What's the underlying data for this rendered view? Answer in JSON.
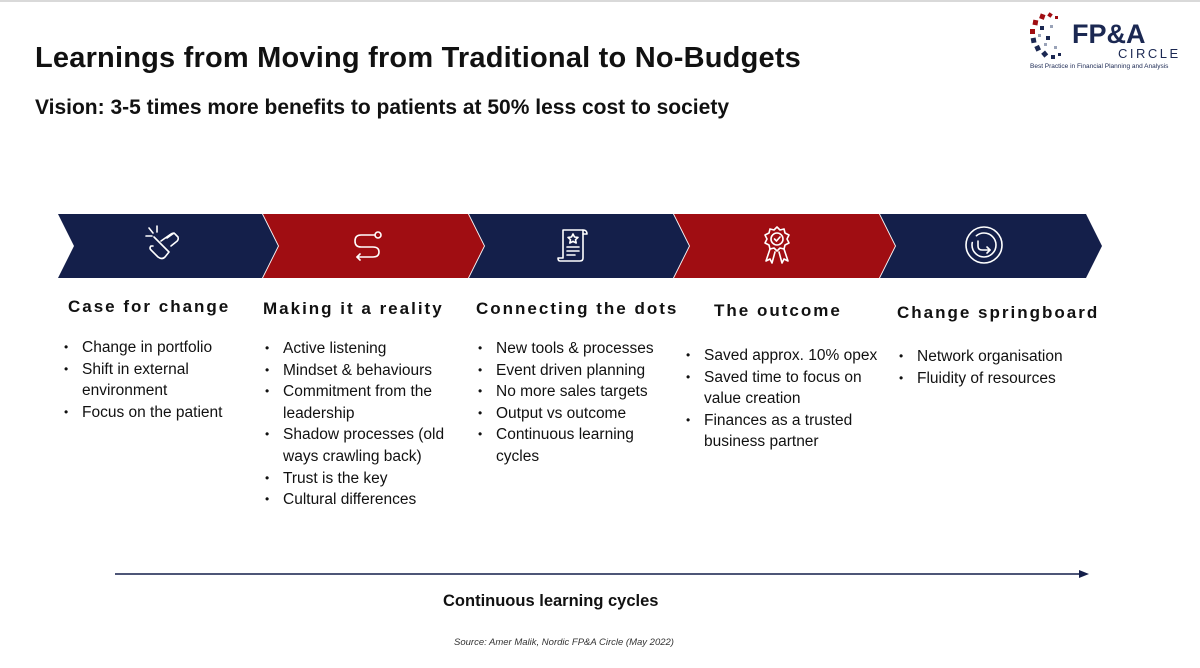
{
  "header": {
    "title": "Learnings from Moving from Traditional to No-Budgets",
    "subtitle": "Vision: 3-5 times more benefits to patients at 50% less cost to society"
  },
  "logo": {
    "brand_main": "FP&A",
    "brand_sub": "CIRCLE",
    "tagline": "Best Practice in Financial Planning and Analysis"
  },
  "colors": {
    "navy": "#141f4a",
    "red": "#a00d12"
  },
  "stages": [
    {
      "title": "Case for change",
      "icon": "pointing-hand-icon",
      "bullets": [
        "Change in portfolio",
        "Shift in external environment",
        "Focus on the patient"
      ]
    },
    {
      "title": "Making it a reality",
      "icon": "winding-path-icon",
      "bullets": [
        "Active listening",
        "Mindset & behaviours",
        "Commitment from the leadership",
        "Shadow processes (old ways crawling back)",
        "Trust is the key",
        "Cultural differences"
      ]
    },
    {
      "title": "Connecting the dots",
      "icon": "document-star-icon",
      "bullets": [
        "New tools & processes",
        "Event driven planning",
        "No more sales targets",
        "Output vs outcome",
        "Continuous learning cycles"
      ]
    },
    {
      "title": "The outcome",
      "icon": "award-ribbon-icon",
      "bullets": [
        "Saved approx. 10% opex",
        "Saved time to focus on value creation",
        "Finances as a trusted business partner"
      ]
    },
    {
      "title": "Change springboard",
      "icon": "circular-arrow-icon",
      "bullets": [
        "Network organisation",
        "Fluidity of resources"
      ]
    }
  ],
  "timeline": {
    "label": "Continuous learning cycles"
  },
  "source": "Source: Amer Malik, Nordic FP&A Circle (May 2022)"
}
